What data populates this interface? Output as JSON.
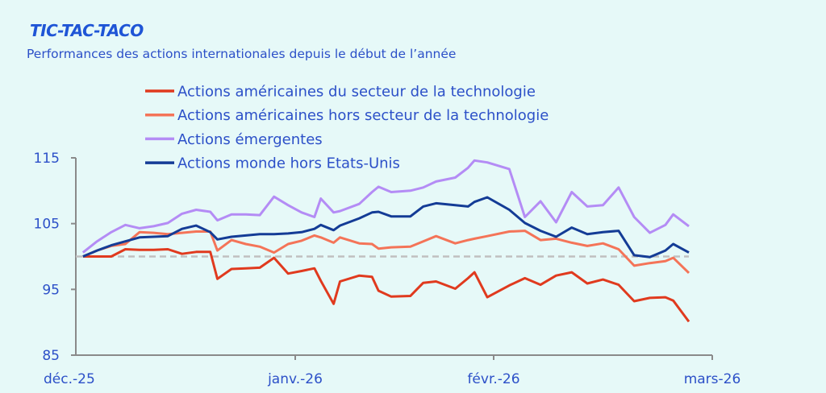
{
  "title": "TIC-TAC-TACO",
  "subtitle": "Performances des actions internationales depuis le début de l’année",
  "chart_data": {
    "type": "line",
    "title": "TIC-TAC-TACO",
    "subtitle": "Performances des actions internationales depuis le début de l’année",
    "xlabel": "",
    "ylabel": "",
    "ylim": [
      85,
      115
    ],
    "yticks": [
      "115",
      "105",
      "95",
      "85"
    ],
    "ytick_values": [
      115,
      105,
      95,
      85
    ],
    "xticks": [
      "déc.-25",
      "janv.-26",
      "févr.-26",
      "mars-26"
    ],
    "xtick_dates": [
      "2025-12-01",
      "2026-01-01",
      "2026-02-01",
      "2026-03-01"
    ],
    "grid": false,
    "legend_position": "top",
    "reference_line": {
      "value": 100,
      "style": "dashed",
      "color": "#c0c0c0"
    },
    "x": [
      "2025-12-02",
      "2025-12-04",
      "2025-12-06",
      "2025-12-08",
      "2025-12-10",
      "2025-12-12",
      "2025-12-14",
      "2025-12-16",
      "2025-12-18",
      "2025-12-20",
      "2025-12-21",
      "2025-12-23",
      "2025-12-25",
      "2025-12-27",
      "2025-12-29",
      "2025-12-31",
      "2026-01-02",
      "2026-01-04",
      "2026-01-05",
      "2026-01-07",
      "2026-01-08",
      "2026-01-11",
      "2026-01-13",
      "2026-01-14",
      "2026-01-16",
      "2026-01-19",
      "2026-01-21",
      "2026-01-23",
      "2026-01-26",
      "2026-01-28",
      "2026-01-29",
      "2026-01-31",
      "2026-02-03",
      "2026-02-05",
      "2026-02-07",
      "2026-02-09",
      "2026-02-11",
      "2026-02-13",
      "2026-02-15",
      "2026-02-17",
      "2026-02-19",
      "2026-02-21",
      "2026-02-23",
      "2026-02-24",
      "2026-02-26"
    ],
    "series": [
      {
        "name": "Actions américaines du secteur de la technologie",
        "color": "#e03a1e",
        "values": [
          100,
          100,
          100,
          101.1,
          101,
          101,
          101.1,
          100.4,
          100.7,
          100.7,
          96.6,
          98.1,
          98.2,
          98.3,
          99.8,
          97.4,
          97.8,
          98.2,
          96.3,
          92.8,
          96.2,
          97.1,
          96.9,
          94.8,
          93.9,
          94,
          96,
          96.2,
          95.1,
          96.7,
          97.6,
          93.8,
          95.6,
          96.7,
          95.7,
          97.1,
          97.6,
          95.9,
          96.5,
          95.7,
          93.2,
          93.7,
          93.8,
          93.3,
          90.1
        ]
      },
      {
        "name": "Actions américaines hors secteur de la technologie",
        "color": "#f47458",
        "values": [
          100,
          100.9,
          101.6,
          101.9,
          103.7,
          103.6,
          103.4,
          103.6,
          103.8,
          103.8,
          100.9,
          102.5,
          101.9,
          101.5,
          100.6,
          101.9,
          102.4,
          103.2,
          102.9,
          102.1,
          102.9,
          102,
          101.9,
          101.2,
          101.4,
          101.5,
          102.3,
          103.1,
          102,
          102.5,
          102.7,
          103.1,
          103.8,
          103.9,
          102.5,
          102.7,
          102.1,
          101.6,
          102,
          101.1,
          98.6,
          99,
          99.3,
          99.8,
          97.5
        ]
      },
      {
        "name": "Actions émergentes",
        "color": "#b48cf5",
        "values": [
          100.6,
          102.3,
          103.7,
          104.8,
          104.3,
          104.6,
          105.1,
          106.5,
          107.1,
          106.8,
          105.5,
          106.4,
          106.4,
          106.3,
          109.1,
          107.8,
          106.7,
          106,
          108.8,
          106.7,
          106.9,
          108,
          109.8,
          110.6,
          109.8,
          110,
          110.5,
          111.4,
          112,
          113.5,
          114.6,
          114.3,
          113.3,
          106,
          108.4,
          105.2,
          109.8,
          107.6,
          107.8,
          110.5,
          106,
          103.6,
          104.8,
          106.4,
          104.6
        ]
      },
      {
        "name": "Actions monde hors Etats-Unis",
        "color": "#143c96",
        "values": [
          100,
          100.9,
          101.7,
          102.3,
          102.9,
          103,
          103.1,
          104.2,
          104.7,
          103.7,
          102.6,
          103,
          103.2,
          103.4,
          103.4,
          103.5,
          103.7,
          104.2,
          104.8,
          104,
          104.7,
          105.8,
          106.7,
          106.8,
          106.1,
          106.1,
          107.6,
          108.1,
          107.8,
          107.6,
          108.3,
          109,
          107.1,
          105.1,
          103.9,
          103,
          104.4,
          103.4,
          103.7,
          103.9,
          100.2,
          99.9,
          100.9,
          101.9,
          100.6
        ]
      }
    ]
  }
}
